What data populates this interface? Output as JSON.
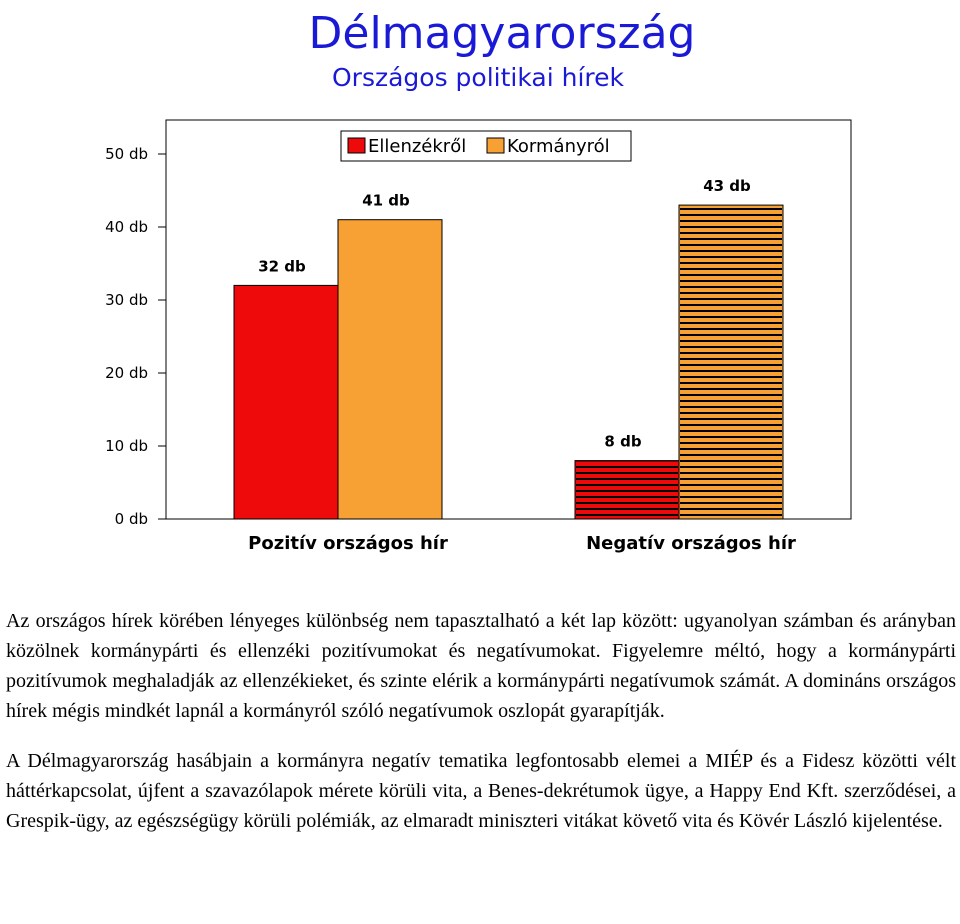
{
  "header": {
    "title": "Délmagyarország",
    "subtitle": "Országos politikai hírek"
  },
  "colors": {
    "title": "#1a1ad6",
    "ellenzekrol": "#ee0a0a",
    "kormanyrol": "#f7a135",
    "stripe": "#000000"
  },
  "chart_data": {
    "type": "bar",
    "title": "Délmagyarország",
    "subtitle": "Országos politikai hírek",
    "categories": [
      "Pozitív országos hír",
      "Negatív országos hír"
    ],
    "series": [
      {
        "name": "Ellenzékről",
        "values": [
          32,
          8
        ],
        "color": "#ee0a0a"
      },
      {
        "name": "Kormányról",
        "values": [
          41,
          43
        ],
        "color": "#f7a135"
      }
    ],
    "value_labels": [
      [
        "32 db",
        "8 db"
      ],
      [
        "41 db",
        "43 db"
      ]
    ],
    "negative_bars_striped": true,
    "ylim": [
      0,
      55
    ],
    "yticks": [
      0,
      10,
      20,
      30,
      40,
      50
    ],
    "ytick_labels": [
      "0 db",
      "10 db",
      "20 db",
      "30 db",
      "40 db",
      "50 db"
    ],
    "xlabel": "",
    "ylabel": "",
    "grid": false,
    "legend_position": "top-center"
  },
  "text": {
    "paragraph1": "Az országos hírek körében lényeges különbség nem tapasztalható a két lap között: ugyanolyan számban és arányban közölnek kormánypárti és ellenzéki pozitívumokat és negatívumokat. Figyelemre méltó, hogy a kormánypárti pozitívumok meghaladják az ellenzékieket, és szinte elérik a kormánypárti negatívumok számát. A domináns országos hírek mégis mindkét lapnál a kormányról szóló negatívumok oszlopát gyarapítják.",
    "paragraph2": "A Délmagyarország hasábjain a kormányra negatív tematika legfontosabb elemei a MIÉP és a Fidesz közötti vélt háttérkapcsolat, újfent a szavazólapok mérete körüli vita, a Benes-dekrétumok ügye, a Happy End Kft. szerződései, a Grespik-ügy, az egészségügy körüli polémiák, az elmaradt miniszteri vitákat követő vita és Kövér László kijelentése."
  }
}
